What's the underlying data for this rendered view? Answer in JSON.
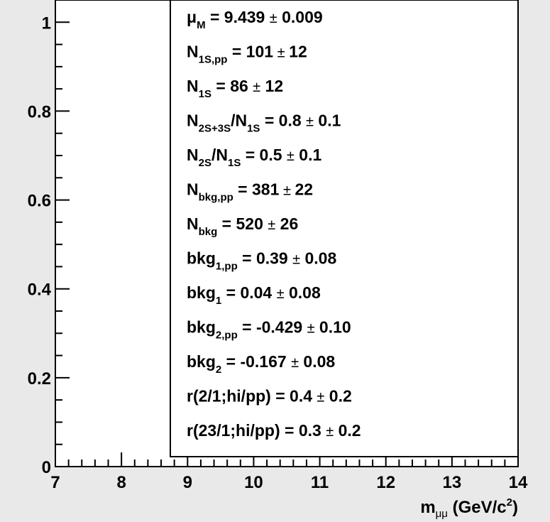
{
  "chart_data": {
    "type": "scatter",
    "title": "",
    "xlabel": "m_μμ (GeV/c²)",
    "xlabel_parts": {
      "main": "m",
      "sub": "μμ",
      "unit": " (GeV/c",
      "sup": "2",
      "close": ")"
    },
    "ylabel": "",
    "xlim": [
      7,
      14
    ],
    "ylim": [
      0,
      1.05
    ],
    "x_ticks": [
      "7",
      "8",
      "9",
      "10",
      "11",
      "12",
      "13",
      "14"
    ],
    "y_ticks": [
      "0",
      "0.2",
      "0.4",
      "0.6",
      "0.8",
      "1"
    ],
    "grid": false,
    "series": [],
    "fit_parameters": [
      {
        "parts": [
          {
            "t": "μ"
          },
          {
            "t": "M",
            "sub": true
          },
          {
            "t": " =  9.439 "
          },
          {
            "t": "±",
            "pm": true
          },
          {
            "t": " 0.009"
          }
        ]
      },
      {
        "parts": [
          {
            "t": "N"
          },
          {
            "t": "1S,pp",
            "sub": true
          },
          {
            "t": " =  101"
          },
          {
            "t": " ± ",
            "pm": true
          },
          {
            "t": "12"
          }
        ]
      },
      {
        "parts": [
          {
            "t": "N"
          },
          {
            "t": "1S",
            "sub": true
          },
          {
            "t": " =  86 "
          },
          {
            "t": "±",
            "pm": true
          },
          {
            "t": " 12"
          }
        ]
      },
      {
        "parts": [
          {
            "t": "N"
          },
          {
            "t": "2S+3S",
            "sub": true
          },
          {
            "t": "/N"
          },
          {
            "t": "1S",
            "sub": true
          },
          {
            "t": " =  0.8 "
          },
          {
            "t": "±",
            "pm": true
          },
          {
            "t": " 0.1"
          }
        ]
      },
      {
        "parts": [
          {
            "t": "N"
          },
          {
            "t": "2S",
            "sub": true
          },
          {
            "t": "/N"
          },
          {
            "t": "1S",
            "sub": true
          },
          {
            "t": " =  0.5 "
          },
          {
            "t": "±",
            "pm": true
          },
          {
            "t": " 0.1"
          }
        ]
      },
      {
        "parts": [
          {
            "t": "N"
          },
          {
            "t": "bkg,pp",
            "sub": true
          },
          {
            "t": " =  381"
          },
          {
            "t": " ± ",
            "pm": true
          },
          {
            "t": "22"
          }
        ]
      },
      {
        "parts": [
          {
            "t": "N"
          },
          {
            "t": "bkg",
            "sub": true
          },
          {
            "t": " =  520 "
          },
          {
            "t": "±",
            "pm": true
          },
          {
            "t": " 26"
          }
        ]
      },
      {
        "parts": [
          {
            "t": "bkg"
          },
          {
            "t": "1,pp",
            "sub": true
          },
          {
            "t": "  =  0.39 "
          },
          {
            "t": "±",
            "pm": true
          },
          {
            "t": " 0.08"
          }
        ]
      },
      {
        "parts": [
          {
            "t": "bkg"
          },
          {
            "t": "1",
            "sub": true
          },
          {
            "t": " =  0.04 "
          },
          {
            "t": "±",
            "pm": true
          },
          {
            "t": " 0.08"
          }
        ]
      },
      {
        "parts": [
          {
            "t": "bkg"
          },
          {
            "t": "2,pp",
            "sub": true
          },
          {
            "t": "  = -0.429 "
          },
          {
            "t": "±",
            "pm": true
          },
          {
            "t": " 0.10"
          }
        ]
      },
      {
        "parts": [
          {
            "t": "bkg"
          },
          {
            "t": "2",
            "sub": true
          },
          {
            "t": " = -0.167 "
          },
          {
            "t": "±",
            "pm": true
          },
          {
            "t": " 0.08"
          }
        ]
      },
      {
        "parts": [
          {
            "t": "r(2/1;hi/pp) =  0.4 "
          },
          {
            "t": "±",
            "pm": true
          },
          {
            "t": " 0.2"
          }
        ]
      },
      {
        "parts": [
          {
            "t": "r(23/1;hi/pp) =  0.3 "
          },
          {
            "t": "±",
            "pm": true
          },
          {
            "t": " 0.2"
          }
        ]
      }
    ]
  }
}
